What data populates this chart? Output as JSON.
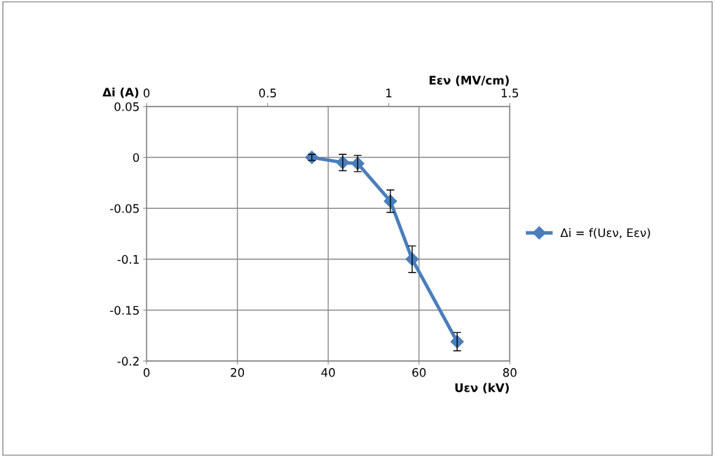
{
  "chart_data": {
    "type": "line",
    "xlabel": "Uεν (kV)",
    "ylabel": "Δi (A)",
    "x2label": "Εεν (MV/cm)",
    "xlim": [
      0,
      80
    ],
    "xticks": [
      0,
      20,
      40,
      60,
      80
    ],
    "ylim": [
      -0.2,
      0.05
    ],
    "yticks": [
      -0.2,
      -0.15,
      -0.1,
      -0.05,
      0,
      0.05
    ],
    "x2lim": [
      0,
      1.5
    ],
    "x2ticks": [
      0,
      0.5,
      1,
      1.5
    ],
    "x": [
      36.4,
      43.2,
      46.5,
      53.7,
      58.5,
      68.4
    ],
    "series": [
      {
        "name": "Δi = f(Uεν, Εεν)",
        "color": "#4a7ebb",
        "values": [
          0,
          -0.005,
          -0.006,
          -0.043,
          -0.1,
          -0.181
        ],
        "errors": [
          0.003,
          0.008,
          0.008,
          0.011,
          0.013,
          0.009
        ]
      }
    ],
    "grid": true,
    "legend": "right",
    "marker": "diamond",
    "line_style": "solid"
  }
}
